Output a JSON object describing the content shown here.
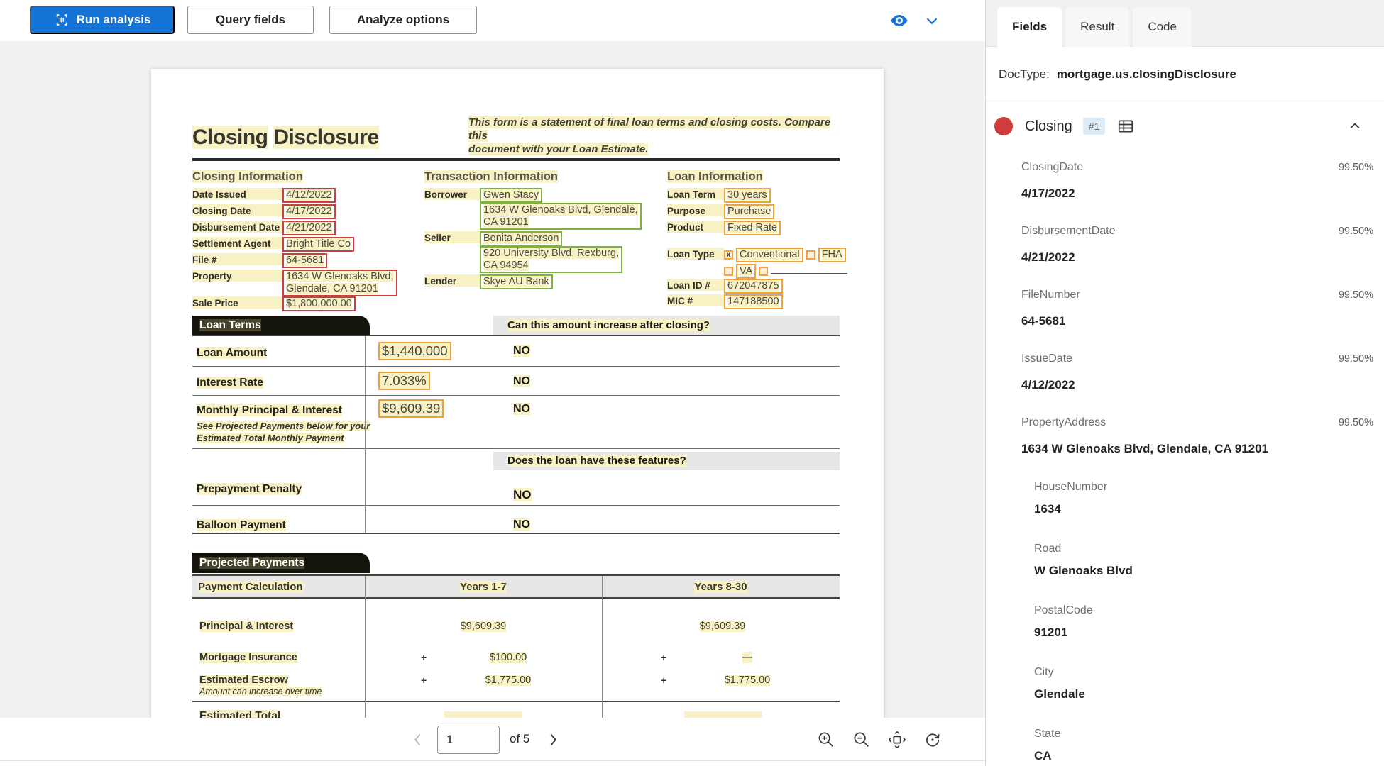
{
  "toolbar": {
    "run_analysis": "Run analysis",
    "query_fields": "Query fields",
    "analyze_options": "Analyze options"
  },
  "pager": {
    "current_page": "1",
    "of_label": "of 5"
  },
  "right_panel": {
    "tabs": [
      {
        "label": "Fields",
        "active": true
      },
      {
        "label": "Result",
        "active": false
      },
      {
        "label": "Code",
        "active": false
      }
    ],
    "doctype_label": "DocType:",
    "doctype_value": "mortgage.us.closingDisclosure",
    "group": {
      "name": "Closing",
      "badge": "#1"
    },
    "fields": [
      {
        "name": "ClosingDate",
        "value": "4/17/2022",
        "confidence": "99.50%",
        "sub": false
      },
      {
        "name": "DisbursementDate",
        "value": "4/21/2022",
        "confidence": "99.50%",
        "sub": false
      },
      {
        "name": "FileNumber",
        "value": "64-5681",
        "confidence": "99.50%",
        "sub": false
      },
      {
        "name": "IssueDate",
        "value": "4/12/2022",
        "confidence": "99.50%",
        "sub": false
      },
      {
        "name": "PropertyAddress",
        "value": "1634 W Glenoaks Blvd, Glendale, CA 91201",
        "confidence": "99.50%",
        "sub": false
      },
      {
        "name": "HouseNumber",
        "value": "1634",
        "confidence": "",
        "sub": true
      },
      {
        "name": "Road",
        "value": "W Glenoaks Blvd",
        "confidence": "",
        "sub": true
      },
      {
        "name": "PostalCode",
        "value": "91201",
        "confidence": "",
        "sub": true
      },
      {
        "name": "City",
        "value": "Glendale",
        "confidence": "",
        "sub": true
      },
      {
        "name": "State",
        "value": "CA",
        "confidence": "",
        "sub": true
      }
    ]
  },
  "document": {
    "title": "Closing Disclosure",
    "intro_line1": "This form is a statement of final loan terms and closing costs. Compare this",
    "intro_line2": "document with your Loan Estimate.",
    "closing_info": {
      "header": "Closing  Information",
      "rows": [
        {
          "label": "Date Issued",
          "lines": [
            "4/12/2022"
          ]
        },
        {
          "label": "Closing Date",
          "lines": [
            "4/17/2022"
          ]
        },
        {
          "label": "Disbursement Date",
          "lines": [
            "4/21/2022"
          ]
        },
        {
          "label": "Settlement Agent",
          "lines": [
            "Bright Title Co"
          ]
        },
        {
          "label": "File #",
          "lines": [
            "64-5681"
          ]
        },
        {
          "label": "Property",
          "lines": [
            "1634 W Glenoaks Blvd,",
            "Glendale, CA 91201"
          ]
        },
        {
          "label": "Sale Price",
          "lines": [
            "$1,800,000.00"
          ]
        }
      ]
    },
    "transaction_info": {
      "header": "Transaction  Information",
      "rows": [
        {
          "label": "Borrower",
          "boxes": [
            [
              "Gwen Stacy"
            ],
            [
              "1634 W Glenoaks Blvd, Glendale,",
              "CA 91201"
            ]
          ]
        },
        {
          "label": "Seller",
          "boxes": [
            [
              "Bonita Anderson"
            ],
            [
              "920 University Blvd, Rexburg,",
              "CA 94954"
            ]
          ]
        },
        {
          "label": "Lender",
          "boxes": [
            [
              "Skye AU Bank"
            ]
          ]
        }
      ]
    },
    "loan_info": {
      "header": "Loan  Information",
      "rows": [
        {
          "label": "Loan Term",
          "value": "30 years"
        },
        {
          "label": "Purpose",
          "value": "Purchase"
        },
        {
          "label": "Product",
          "value": "Fixed Rate"
        }
      ],
      "loan_type_label": "Loan Type",
      "loan_type_options": [
        {
          "checked": true,
          "label": "Conventional"
        },
        {
          "checked": false,
          "label": "FHA"
        },
        {
          "checked": false,
          "label": "VA"
        },
        {
          "checked": false,
          "label": ""
        }
      ],
      "rows2": [
        {
          "label": "Loan ID #",
          "value": "672047875"
        },
        {
          "label": "MIC #",
          "value": "147188500"
        }
      ]
    },
    "loan_terms": {
      "header": "Loan Terms",
      "question1": "Can this amount increase after closing?",
      "rows": [
        {
          "label": "Loan Amount",
          "value": "$1,440,000",
          "answer": "NO"
        },
        {
          "label": "Interest Rate",
          "value": "7.033%",
          "answer": "NO"
        },
        {
          "label": "Monthly Principal & Interest",
          "value": "$9,609.39",
          "answer": "NO",
          "note1": "See Projected Payments below for your",
          "note2": "Estimated Total Monthly Payment"
        }
      ],
      "question2": "Does the loan have these features?",
      "rows2": [
        {
          "label": "Prepayment Penalty",
          "answer": "NO"
        },
        {
          "label": "Balloon Payment",
          "answer": "NO"
        }
      ]
    },
    "projected_payments": {
      "header": "Projected Payments",
      "col1": "Payment Calculation",
      "col2": "Years 1-7",
      "col3": "Years 8-30",
      "rows": [
        {
          "label": "Principal & Interest",
          "note": "",
          "plus": false,
          "v1": "$9,609.39",
          "v2": "$9,609.39"
        },
        {
          "label": "Mortgage Insurance",
          "note": "",
          "plus": true,
          "v1": "$100.00",
          "v2": "—"
        },
        {
          "label": "Estimated Escrow",
          "note": "Amount can increase over time",
          "plus": true,
          "v1": "$1,775.00",
          "v2": "$1,775.00"
        }
      ],
      "total_label": "Estimated Total"
    }
  }
}
